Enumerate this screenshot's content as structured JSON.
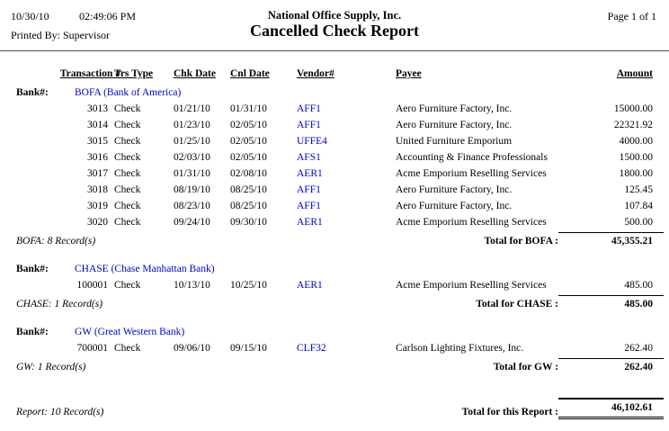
{
  "page_header": {
    "date": "10/30/10",
    "time": "02:49:06 PM",
    "printed_by": "Printed By: Supervisor",
    "company": "National Office Supply, Inc.",
    "report_title": "Cancelled Check Report",
    "page_info": "Page 1 of 1"
  },
  "colors": {
    "link_blue": "#0000CC"
  },
  "table": {
    "bank_label": "Bank#:",
    "columns": [
      "Transaction #",
      "Trs Type",
      "Chk Date",
      "Cnl Date",
      "Vendor#",
      "Payee",
      "Amount"
    ],
    "sections": [
      {
        "bank": "BOFA (Bank of America)",
        "rows": [
          {
            "transaction": "3013",
            "type": "Check",
            "chk_date": "01/21/10",
            "cnl_date": "01/31/10",
            "vendor": "AFF1",
            "payee": "Aero Furniture Factory, Inc.",
            "amount": "15000.00"
          },
          {
            "transaction": "3014",
            "type": "Check",
            "chk_date": "01/23/10",
            "cnl_date": "02/05/10",
            "vendor": "AFF1",
            "payee": "Aero Furniture Factory, Inc.",
            "amount": "22321.92"
          },
          {
            "transaction": "3015",
            "type": "Check",
            "chk_date": "01/25/10",
            "cnl_date": "02/05/10",
            "vendor": "UFFE4",
            "payee": "United Furniture Emporium",
            "amount": "4000.00"
          },
          {
            "transaction": "3016",
            "type": "Check",
            "chk_date": "02/03/10",
            "cnl_date": "02/05/10",
            "vendor": "AFS1",
            "payee": "Accounting & Finance Professionals",
            "amount": "1500.00"
          },
          {
            "transaction": "3017",
            "type": "Check",
            "chk_date": "01/31/10",
            "cnl_date": "02/08/10",
            "vendor": "AER1",
            "payee": "Acme Emporium Reselling Services",
            "amount": "1800.00"
          },
          {
            "transaction": "3018",
            "type": "Check",
            "chk_date": "08/19/10",
            "cnl_date": "08/25/10",
            "vendor": "AFF1",
            "payee": "Aero Furniture Factory, Inc.",
            "amount": "125.45"
          },
          {
            "transaction": "3019",
            "type": "Check",
            "chk_date": "08/23/10",
            "cnl_date": "08/25/10",
            "vendor": "AFF1",
            "payee": "Aero Furniture Factory, Inc.",
            "amount": "107.84"
          },
          {
            "transaction": "3020",
            "type": "Check",
            "chk_date": "09/24/10",
            "cnl_date": "09/30/10",
            "vendor": "AER1",
            "payee": "Acme Emporium Reselling Services",
            "amount": "500.00"
          }
        ],
        "record_count": "BOFA: 8 Record(s)",
        "total_label": "Total for BOFA :",
        "total": "45,355.21"
      },
      {
        "bank": "CHASE (Chase Manhattan Bank)",
        "rows": [
          {
            "transaction": "100001",
            "type": "Check",
            "chk_date": "10/13/10",
            "cnl_date": "10/25/10",
            "vendor": "AER1",
            "payee": "Acme Emporium Reselling Services",
            "amount": "485.00"
          }
        ],
        "record_count": "CHASE: 1 Record(s)",
        "total_label": "Total for CHASE :",
        "total": "485.00"
      },
      {
        "bank": "GW (Great Western Bank)",
        "rows": [
          {
            "transaction": "700001",
            "type": "Check",
            "chk_date": "09/06/10",
            "cnl_date": "09/15/10",
            "vendor": "CLF32",
            "payee": "Carlson Lighting Fixtures, Inc.",
            "amount": "262.40"
          }
        ],
        "record_count": "GW: 1 Record(s)",
        "total_label": "Total for GW :",
        "total": "262.40"
      }
    ],
    "report_footer": {
      "record_count": "Report: 10 Record(s)",
      "total_label": "Total for this Report :",
      "total": "46,102.61"
    }
  }
}
